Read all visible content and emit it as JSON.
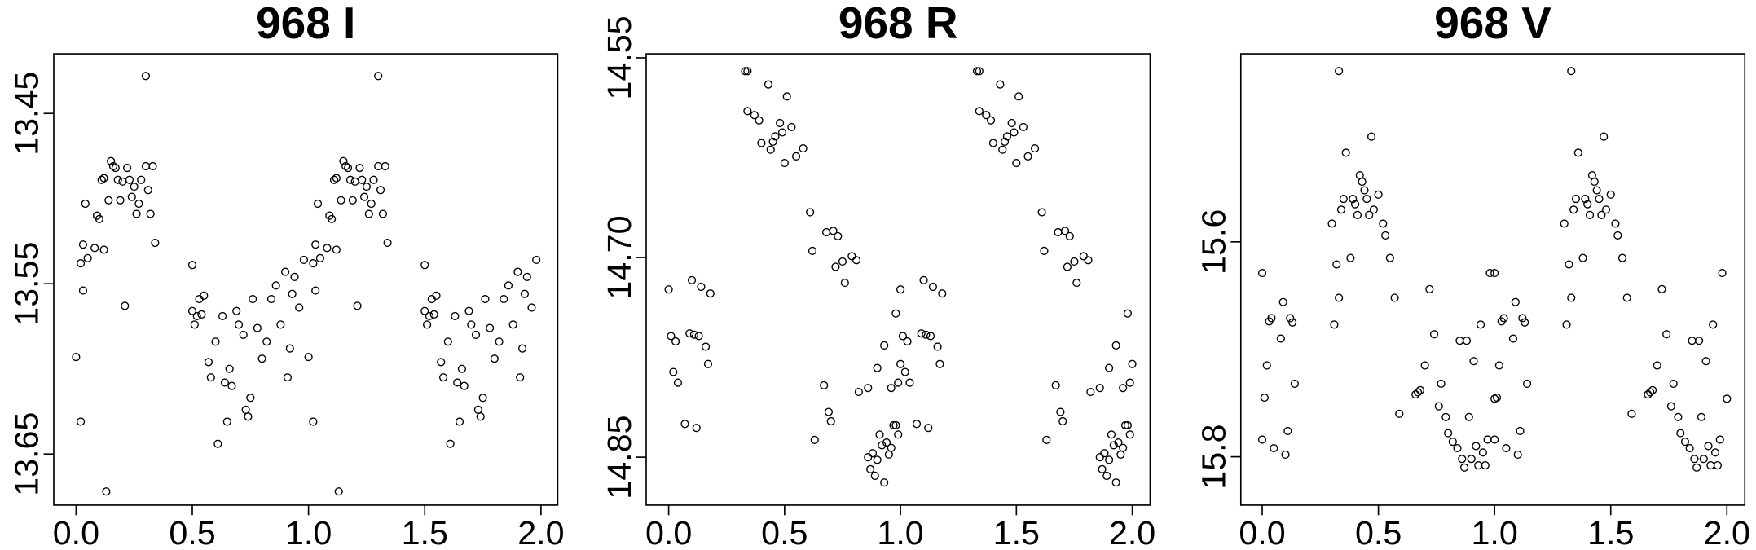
{
  "chart_data": [
    {
      "type": "scatter",
      "title": "968 I",
      "color": "#000000",
      "x": [
        0.0,
        0.02,
        0.02,
        0.03,
        0.04,
        0.03,
        0.05,
        0.08,
        0.09,
        0.1,
        0.11,
        0.12,
        0.12,
        0.13,
        0.14,
        0.15,
        0.16,
        0.17,
        0.18,
        0.19,
        0.2,
        0.21,
        0.22,
        0.23,
        0.24,
        0.25,
        0.26,
        0.27,
        0.28,
        0.3,
        0.3,
        0.31,
        0.32,
        0.33,
        0.34,
        0.5,
        0.5,
        0.51,
        0.52,
        0.53,
        0.54,
        0.55,
        0.57,
        0.58,
        0.6,
        0.61,
        0.63,
        0.64,
        0.65,
        0.66,
        0.67,
        0.69,
        0.7,
        0.72,
        0.73,
        0.74,
        0.75,
        0.76,
        0.78,
        0.8,
        0.82,
        0.84,
        0.86,
        0.88,
        0.9,
        0.91,
        0.92,
        0.93,
        0.94,
        0.96,
        0.98,
        1.0,
        1.02,
        1.02,
        1.03,
        1.04,
        1.03,
        1.05,
        1.08,
        1.09,
        1.1,
        1.11,
        1.12,
        1.12,
        1.13,
        1.14,
        1.15,
        1.16,
        1.17,
        1.18,
        1.19,
        1.2,
        1.21,
        1.22,
        1.23,
        1.24,
        1.25,
        1.26,
        1.27,
        1.28,
        1.3,
        1.3,
        1.31,
        1.32,
        1.33,
        1.34,
        1.5,
        1.5,
        1.51,
        1.52,
        1.53,
        1.54,
        1.55,
        1.57,
        1.58,
        1.6,
        1.61,
        1.63,
        1.64,
        1.65,
        1.66,
        1.67,
        1.69,
        1.7,
        1.72,
        1.73,
        1.74,
        1.75,
        1.76,
        1.78,
        1.8,
        1.82,
        1.84,
        1.86,
        1.88,
        1.9,
        1.91,
        1.92,
        1.93,
        1.94,
        1.96,
        1.98
      ],
      "values": [
        13.593,
        13.631,
        13.538,
        13.527,
        13.503,
        13.554,
        13.535,
        13.529,
        13.51,
        13.512,
        13.489,
        13.488,
        13.53,
        13.672,
        13.501,
        13.478,
        13.481,
        13.482,
        13.489,
        13.501,
        13.49,
        13.563,
        13.482,
        13.489,
        13.499,
        13.493,
        13.509,
        13.503,
        13.489,
        13.428,
        13.481,
        13.495,
        13.509,
        13.481,
        13.526,
        13.539,
        13.566,
        13.574,
        13.569,
        13.559,
        13.568,
        13.557,
        13.596,
        13.605,
        13.584,
        13.644,
        13.569,
        13.608,
        13.631,
        13.6,
        13.61,
        13.566,
        13.574,
        13.58,
        13.624,
        13.628,
        13.617,
        13.559,
        13.576,
        13.594,
        13.584,
        13.559,
        13.551,
        13.574,
        13.543,
        13.605,
        13.588,
        13.556,
        13.546,
        13.564,
        13.536,
        13.593,
        13.631,
        13.538,
        13.527,
        13.503,
        13.554,
        13.535,
        13.529,
        13.51,
        13.512,
        13.489,
        13.488,
        13.53,
        13.672,
        13.501,
        13.478,
        13.481,
        13.482,
        13.489,
        13.501,
        13.49,
        13.563,
        13.482,
        13.489,
        13.499,
        13.493,
        13.509,
        13.503,
        13.489,
        13.428,
        13.481,
        13.495,
        13.509,
        13.481,
        13.526,
        13.539,
        13.566,
        13.574,
        13.569,
        13.559,
        13.568,
        13.557,
        13.596,
        13.605,
        13.584,
        13.644,
        13.569,
        13.608,
        13.631,
        13.6,
        13.61,
        13.566,
        13.574,
        13.58,
        13.624,
        13.628,
        13.617,
        13.559,
        13.576,
        13.594,
        13.584,
        13.559,
        13.551,
        13.574,
        13.543,
        13.605,
        13.588,
        13.556,
        13.546,
        13.564,
        13.536
      ],
      "xlim": [
        -0.096,
        2.072
      ],
      "ylim": [
        13.68,
        13.415
      ],
      "xticks": [
        {
          "value": 0,
          "label": "0.0"
        },
        0.5,
        {
          "value": 1,
          "label": "1.0"
        },
        1.5,
        {
          "value": 2,
          "label": "2.0"
        }
      ],
      "yticks": [
        13.45,
        13.55,
        13.65
      ]
    },
    {
      "type": "scatter",
      "title": "968 R",
      "color": "#000000",
      "x": [
        0.0,
        0.01,
        0.02,
        0.03,
        0.04,
        0.07,
        0.09,
        0.1,
        0.11,
        0.12,
        0.13,
        0.14,
        0.16,
        0.17,
        0.18,
        0.33,
        0.34,
        0.34,
        0.37,
        0.39,
        0.4,
        0.43,
        0.44,
        0.45,
        0.46,
        0.48,
        0.49,
        0.5,
        0.51,
        0.53,
        0.55,
        0.58,
        0.61,
        0.62,
        0.63,
        0.67,
        0.68,
        0.69,
        0.7,
        0.71,
        0.72,
        0.73,
        0.75,
        0.76,
        0.79,
        0.81,
        0.82,
        0.86,
        0.86,
        0.87,
        0.88,
        0.89,
        0.9,
        0.9,
        0.91,
        0.92,
        0.93,
        0.93,
        0.94,
        0.95,
        0.96,
        0.96,
        0.97,
        0.98,
        0.98,
        0.99,
        1.0,
        0.99,
        1.0,
        1.01,
        1.02,
        1.03,
        1.04,
        1.07,
        1.09,
        1.1,
        1.11,
        1.12,
        1.13,
        1.14,
        1.16,
        1.17,
        1.18,
        1.33,
        1.34,
        1.34,
        1.37,
        1.39,
        1.4,
        1.43,
        1.44,
        1.45,
        1.46,
        1.48,
        1.49,
        1.5,
        1.51,
        1.53,
        1.55,
        1.58,
        1.61,
        1.62,
        1.63,
        1.67,
        1.68,
        1.69,
        1.7,
        1.71,
        1.72,
        1.73,
        1.75,
        1.76,
        1.79,
        1.81,
        1.82,
        1.86,
        1.86,
        1.87,
        1.88,
        1.89,
        1.9,
        1.9,
        1.91,
        1.92,
        1.93,
        1.93,
        1.94,
        1.95,
        1.96,
        1.96,
        1.97,
        1.98,
        1.98,
        1.99,
        2.0,
        1.99
      ],
      "values": [
        14.724,
        14.759,
        14.786,
        14.763,
        14.794,
        14.825,
        14.757,
        14.717,
        14.758,
        14.828,
        14.759,
        14.722,
        14.767,
        14.78,
        14.727,
        14.56,
        14.56,
        14.59,
        14.593,
        14.597,
        14.614,
        14.57,
        14.619,
        14.613,
        14.609,
        14.599,
        14.606,
        14.629,
        14.579,
        14.602,
        14.624,
        14.618,
        14.666,
        14.695,
        14.837,
        14.796,
        14.681,
        14.816,
        14.823,
        14.68,
        14.707,
        14.684,
        14.703,
        14.719,
        14.699,
        14.702,
        14.801,
        14.798,
        14.85,
        14.859,
        14.847,
        14.864,
        14.852,
        14.783,
        14.833,
        14.841,
        14.869,
        14.766,
        14.839,
        14.848,
        14.843,
        14.798,
        14.826,
        14.742,
        14.826,
        14.794,
        14.78,
        14.833,
        14.724,
        14.759,
        14.786,
        14.763,
        14.794,
        14.825,
        14.757,
        14.717,
        14.758,
        14.828,
        14.759,
        14.722,
        14.767,
        14.78,
        14.727,
        14.56,
        14.56,
        14.59,
        14.593,
        14.597,
        14.614,
        14.57,
        14.619,
        14.613,
        14.609,
        14.599,
        14.606,
        14.629,
        14.579,
        14.602,
        14.624,
        14.618,
        14.666,
        14.695,
        14.837,
        14.796,
        14.681,
        14.816,
        14.823,
        14.68,
        14.707,
        14.684,
        14.703,
        14.719,
        14.699,
        14.702,
        14.801,
        14.798,
        14.85,
        14.859,
        14.847,
        14.864,
        14.852,
        14.783,
        14.833,
        14.841,
        14.869,
        14.766,
        14.839,
        14.848,
        14.843,
        14.798,
        14.826,
        14.742,
        14.826,
        14.794,
        14.78,
        14.833
      ],
      "xlim": [
        -0.097,
        2.077
      ],
      "ylim": [
        14.886,
        14.547
      ],
      "xticks": [
        {
          "value": 0,
          "label": "0.0"
        },
        0.5,
        {
          "value": 1,
          "label": "1.0"
        },
        1.5,
        {
          "value": 2,
          "label": "2.0"
        }
      ],
      "yticks": [
        14.55,
        {
          "value": 14.7,
          "label": "14.70"
        },
        14.85
      ]
    },
    {
      "type": "scatter",
      "title": "968 V",
      "color": "#000000",
      "x": [
        0.0,
        0.0,
        0.01,
        0.02,
        0.03,
        0.04,
        0.05,
        0.08,
        0.09,
        0.1,
        0.11,
        0.12,
        0.13,
        0.14,
        0.3,
        0.31,
        0.32,
        0.33,
        0.33,
        0.34,
        0.35,
        0.36,
        0.38,
        0.39,
        0.4,
        0.41,
        0.42,
        0.43,
        0.44,
        0.45,
        0.46,
        0.47,
        0.48,
        0.5,
        0.52,
        0.53,
        0.55,
        0.57,
        0.59,
        0.66,
        0.67,
        0.68,
        0.7,
        0.72,
        0.74,
        0.76,
        0.77,
        0.79,
        0.8,
        0.82,
        0.84,
        0.85,
        0.86,
        0.87,
        0.88,
        0.89,
        0.9,
        0.91,
        0.92,
        0.93,
        0.94,
        0.95,
        0.96,
        0.97,
        0.98,
        1.0,
        1.0,
        1.0,
        1.01,
        1.02,
        1.03,
        1.04,
        1.05,
        1.08,
        1.09,
        1.1,
        1.11,
        1.12,
        1.13,
        1.14,
        1.3,
        1.31,
        1.32,
        1.33,
        1.33,
        1.34,
        1.35,
        1.36,
        1.38,
        1.39,
        1.4,
        1.41,
        1.42,
        1.43,
        1.44,
        1.45,
        1.46,
        1.47,
        1.48,
        1.5,
        1.52,
        1.53,
        1.55,
        1.57,
        1.59,
        1.66,
        1.67,
        1.68,
        1.7,
        1.72,
        1.74,
        1.76,
        1.77,
        1.79,
        1.8,
        1.82,
        1.84,
        1.85,
        1.86,
        1.87,
        1.88,
        1.89,
        1.9,
        1.91,
        1.92,
        1.93,
        1.94,
        1.95,
        1.96,
        1.97,
        1.98,
        2.0
      ],
      "values": [
        15.629,
        15.784,
        15.745,
        15.715,
        15.674,
        15.671,
        15.792,
        15.69,
        15.656,
        15.798,
        15.776,
        15.671,
        15.675,
        15.732,
        15.583,
        15.677,
        15.621,
        15.652,
        15.441,
        15.57,
        15.56,
        15.517,
        15.615,
        15.56,
        15.565,
        15.575,
        15.538,
        15.544,
        15.552,
        15.56,
        15.575,
        15.502,
        15.57,
        15.556,
        15.583,
        15.594,
        15.615,
        15.652,
        15.76,
        15.742,
        15.74,
        15.738,
        15.715,
        15.644,
        15.686,
        15.753,
        15.732,
        15.763,
        15.778,
        15.786,
        15.792,
        15.692,
        15.802,
        15.81,
        15.692,
        15.763,
        15.802,
        15.711,
        15.79,
        15.808,
        15.677,
        15.796,
        15.808,
        15.784,
        15.629,
        15.746,
        15.629,
        15.784,
        15.745,
        15.715,
        15.674,
        15.671,
        15.792,
        15.69,
        15.656,
        15.798,
        15.776,
        15.671,
        15.675,
        15.732,
        15.583,
        15.677,
        15.621,
        15.652,
        15.441,
        15.57,
        15.56,
        15.517,
        15.615,
        15.56,
        15.565,
        15.575,
        15.538,
        15.544,
        15.552,
        15.56,
        15.575,
        15.502,
        15.57,
        15.556,
        15.583,
        15.594,
        15.615,
        15.652,
        15.76,
        15.742,
        15.74,
        15.738,
        15.715,
        15.644,
        15.686,
        15.753,
        15.732,
        15.763,
        15.778,
        15.786,
        15.792,
        15.692,
        15.802,
        15.81,
        15.692,
        15.763,
        15.802,
        15.711,
        15.79,
        15.808,
        15.677,
        15.796,
        15.808,
        15.784,
        15.629,
        15.746
      ],
      "xlim": [
        -0.092,
        2.077
      ],
      "ylim": [
        15.845,
        15.425
      ],
      "xticks": [
        {
          "value": 0,
          "label": "0.0"
        },
        0.5,
        {
          "value": 1,
          "label": "1.0"
        },
        1.5,
        {
          "value": 2,
          "label": "2.0"
        }
      ],
      "yticks": [
        15.6,
        15.8
      ]
    }
  ]
}
